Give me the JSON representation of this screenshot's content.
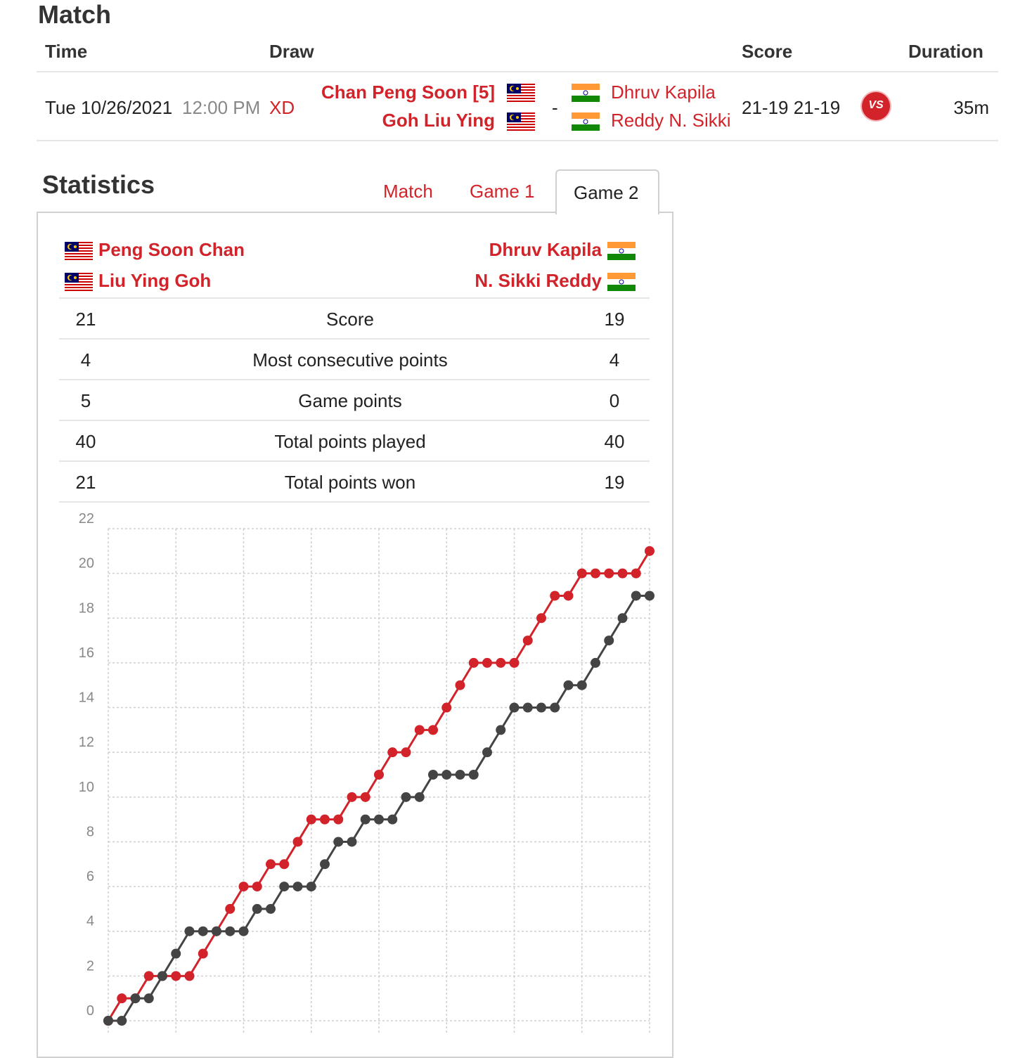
{
  "match_section": {
    "title": "Match",
    "headers": {
      "time": "Time",
      "draw": "Draw",
      "score": "Score",
      "duration": "Duration"
    },
    "row": {
      "date": "Tue 10/26/2021",
      "time": "12:00 PM",
      "draw": "XD",
      "team1": [
        "Chan Peng Soon [5]",
        "Goh Liu Ying"
      ],
      "separator": "-",
      "team2": [
        "Dhruv Kapila",
        "Reddy N. Sikki"
      ],
      "score": "21-19 21-19",
      "vs_label": "VS",
      "duration": "35m"
    }
  },
  "statistics": {
    "title": "Statistics",
    "tabs": [
      "Match",
      "Game 1",
      "Game 2"
    ],
    "active_tab": "Game 2",
    "team1": [
      "Peng Soon Chan",
      "Liu Ying Goh"
    ],
    "team2": [
      "Dhruv Kapila",
      "N. Sikki Reddy"
    ],
    "rows": [
      {
        "left": "21",
        "label": "Score",
        "right": "19"
      },
      {
        "left": "4",
        "label": "Most consecutive points",
        "right": "4"
      },
      {
        "left": "5",
        "label": "Game points",
        "right": "0"
      },
      {
        "left": "40",
        "label": "Total points played",
        "right": "40"
      },
      {
        "left": "21",
        "label": "Total points won",
        "right": "19"
      }
    ]
  },
  "colors": {
    "accent": "#d2232a",
    "team2_line": "#444444"
  },
  "chart_data": {
    "type": "line",
    "x": [
      0,
      1,
      2,
      3,
      4,
      5,
      6,
      7,
      8,
      9,
      10,
      11,
      12,
      13,
      14,
      15,
      16,
      17,
      18,
      19,
      20,
      21,
      22,
      23,
      24,
      25,
      26,
      27,
      28,
      29,
      30,
      31,
      32,
      33,
      34,
      35,
      36,
      37,
      38,
      39,
      40
    ],
    "ylim": [
      0,
      22
    ],
    "yticks": [
      "0",
      "2",
      "4",
      "6",
      "8",
      "10",
      "12",
      "14",
      "16",
      "18",
      "20",
      "22"
    ],
    "grid": true,
    "series": [
      {
        "color": "#d2232a",
        "values": [
          0,
          1,
          1,
          2,
          2,
          2,
          2,
          3,
          4,
          5,
          6,
          6,
          7,
          7,
          8,
          9,
          9,
          9,
          10,
          10,
          11,
          12,
          12,
          13,
          13,
          14,
          15,
          16,
          16,
          16,
          16,
          17,
          18,
          19,
          19,
          20,
          20,
          20,
          20,
          20,
          21
        ]
      },
      {
        "color": "#444444",
        "values": [
          0,
          0,
          1,
          1,
          2,
          3,
          4,
          4,
          4,
          4,
          4,
          5,
          5,
          6,
          6,
          6,
          7,
          8,
          8,
          9,
          9,
          9,
          10,
          10,
          11,
          11,
          11,
          11,
          12,
          13,
          14,
          14,
          14,
          14,
          15,
          15,
          16,
          17,
          18,
          19,
          19
        ]
      }
    ]
  }
}
